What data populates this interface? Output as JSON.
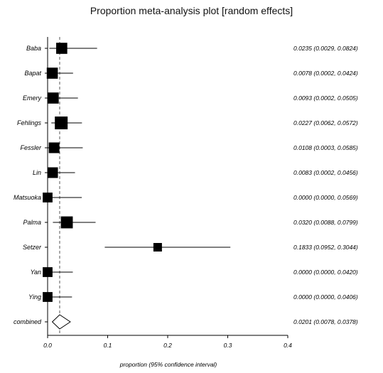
{
  "chart_data": {
    "type": "forest",
    "title": "Proportion meta-analysis plot [random effects]",
    "xlabel": "proportion (95% confidence interval)",
    "xlim": [
      0,
      0.4
    ],
    "xticks": [
      {
        "value": 0.0,
        "label": "0.0"
      },
      {
        "value": 0.1,
        "label": "0.1"
      },
      {
        "value": 0.2,
        "label": "0.2"
      },
      {
        "value": 0.3,
        "label": "0.3"
      },
      {
        "value": 0.4,
        "label": "0.4"
      }
    ],
    "reference_line": 0.0201,
    "studies": [
      {
        "name": "Baba",
        "estimate": 0.0235,
        "lower": 0.0029,
        "upper": 0.0824,
        "weight": 1.3,
        "ci_text": "0.0235 (0.0029, 0.0824)"
      },
      {
        "name": "Bapat",
        "estimate": 0.0078,
        "lower": 0.0002,
        "upper": 0.0424,
        "weight": 1.3,
        "ci_text": "0.0078 (0.0002, 0.0424)"
      },
      {
        "name": "Emery",
        "estimate": 0.0093,
        "lower": 0.0002,
        "upper": 0.0505,
        "weight": 1.3,
        "ci_text": "0.0093 (0.0002, 0.0505)"
      },
      {
        "name": "Fehlings",
        "estimate": 0.0227,
        "lower": 0.0062,
        "upper": 0.0572,
        "weight": 1.5,
        "ci_text": "0.0227 (0.0062, 0.0572)"
      },
      {
        "name": "Fessler",
        "estimate": 0.0108,
        "lower": 0.0003,
        "upper": 0.0585,
        "weight": 1.25,
        "ci_text": "0.0108 (0.0003, 0.0585)"
      },
      {
        "name": "Lin",
        "estimate": 0.0083,
        "lower": 0.0002,
        "upper": 0.0456,
        "weight": 1.25,
        "ci_text": "0.0083 (0.0002, 0.0456)"
      },
      {
        "name": "Matsuoka",
        "estimate": 0.0,
        "lower": 0.0,
        "upper": 0.0569,
        "weight": 1.15,
        "ci_text": "0.0000 (0.0000, 0.0569)"
      },
      {
        "name": "Palma",
        "estimate": 0.032,
        "lower": 0.0088,
        "upper": 0.0799,
        "weight": 1.4,
        "ci_text": "0.0320 (0.0088, 0.0799)"
      },
      {
        "name": "Setzer",
        "estimate": 0.1833,
        "lower": 0.0952,
        "upper": 0.3044,
        "weight": 1.0,
        "ci_text": "0.1833 (0.0952, 0.3044)"
      },
      {
        "name": "Yan",
        "estimate": 0.0,
        "lower": 0.0,
        "upper": 0.042,
        "weight": 1.15,
        "ci_text": "0.0000 (0.0000, 0.0420)"
      },
      {
        "name": "Ying",
        "estimate": 0.0,
        "lower": 0.0,
        "upper": 0.0406,
        "weight": 1.15,
        "ci_text": "0.0000 (0.0000, 0.0406)"
      }
    ],
    "combined": {
      "name": "combined",
      "estimate": 0.0201,
      "lower": 0.0078,
      "upper": 0.0378,
      "ci_text": "0.0201 (0.0078, 0.0378)"
    }
  }
}
